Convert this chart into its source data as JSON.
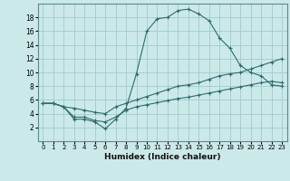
{
  "bg_color": "#cce9ea",
  "grid_color": "#9ecbcc",
  "line_color": "#2e6b6b",
  "xlabel": "Humidex (Indice chaleur)",
  "xlim": [
    -0.5,
    23.5
  ],
  "ylim": [
    0,
    20
  ],
  "xticks": [
    0,
    1,
    2,
    3,
    4,
    5,
    6,
    7,
    8,
    9,
    10,
    11,
    12,
    13,
    14,
    15,
    16,
    17,
    18,
    19,
    20,
    21,
    22,
    23
  ],
  "yticks": [
    2,
    4,
    6,
    8,
    10,
    12,
    14,
    16,
    18
  ],
  "line1_x": [
    0,
    1,
    2,
    3,
    4,
    5,
    6,
    7,
    8,
    9,
    10,
    11,
    12,
    13,
    14,
    15,
    16,
    17,
    18,
    19,
    20,
    21,
    22,
    23
  ],
  "line1_y": [
    5.5,
    5.5,
    5.0,
    3.2,
    3.2,
    2.8,
    1.8,
    3.2,
    4.8,
    9.8,
    16.0,
    17.8,
    18.0,
    19.0,
    19.2,
    18.5,
    17.5,
    15.0,
    13.5,
    11.0,
    10.0,
    9.5,
    8.2,
    8.0
  ],
  "line2_x": [
    0,
    1,
    2,
    3,
    4,
    5,
    6,
    7,
    8,
    9,
    10,
    11,
    12,
    13,
    14,
    15,
    16,
    17,
    18,
    19,
    20,
    21,
    22,
    23
  ],
  "line2_y": [
    5.5,
    5.5,
    5.0,
    4.8,
    4.5,
    4.2,
    4.0,
    5.0,
    5.5,
    6.0,
    6.5,
    7.0,
    7.5,
    8.0,
    8.2,
    8.5,
    9.0,
    9.5,
    9.8,
    10.0,
    10.5,
    11.0,
    11.5,
    12.0
  ],
  "line3_x": [
    0,
    1,
    2,
    3,
    4,
    5,
    6,
    7,
    8,
    9,
    10,
    11,
    12,
    13,
    14,
    15,
    16,
    17,
    18,
    19,
    20,
    21,
    22,
    23
  ],
  "line3_y": [
    5.5,
    5.5,
    5.0,
    3.5,
    3.5,
    3.0,
    2.8,
    3.5,
    4.5,
    5.0,
    5.3,
    5.6,
    5.9,
    6.2,
    6.4,
    6.7,
    7.0,
    7.3,
    7.6,
    7.9,
    8.2,
    8.5,
    8.7,
    8.5
  ]
}
